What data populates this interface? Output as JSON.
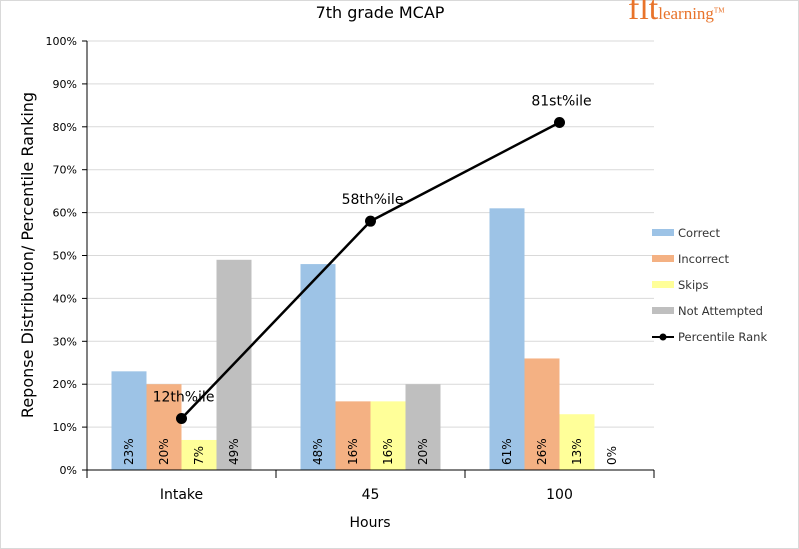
{
  "logo": {
    "big": "flt",
    "small": "learning",
    "tm": "TM"
  },
  "chart_data": {
    "type": "bar",
    "title": "7th grade MCAP",
    "xlabel": "Hours",
    "ylabel": "Reponse Distribution/ Percentile Ranking",
    "categories": [
      "Intake",
      "45",
      "100"
    ],
    "ylim": [
      0,
      100
    ],
    "yticks": [
      "0%",
      "10%",
      "20%",
      "30%",
      "40%",
      "50%",
      "60%",
      "70%",
      "80%",
      "90%",
      "100%"
    ],
    "grid": true,
    "legend_position": "right",
    "series": [
      {
        "name": "Correct",
        "color": "#9dc3e6",
        "values": [
          23,
          48,
          61
        ],
        "labels": [
          "23%",
          "48%",
          "61%"
        ]
      },
      {
        "name": "Incorrect",
        "color": "#f4b183",
        "values": [
          20,
          16,
          26
        ],
        "labels": [
          "20%",
          "16%",
          "26%"
        ]
      },
      {
        "name": "Skips",
        "color": "#ffff99",
        "values": [
          7,
          16,
          13
        ],
        "labels": [
          "7%",
          "16%",
          "13%"
        ]
      },
      {
        "name": "Not Attempted",
        "color": "#bfbfbf",
        "values": [
          49,
          20,
          0
        ],
        "labels": [
          "49%",
          "20%",
          "0%"
        ]
      }
    ],
    "line_series": {
      "name": "Percentile Rank",
      "color": "#000000",
      "values": [
        12,
        58,
        81
      ],
      "labels": [
        "12th%ile",
        "58th%ile",
        "81st%ile"
      ]
    }
  }
}
